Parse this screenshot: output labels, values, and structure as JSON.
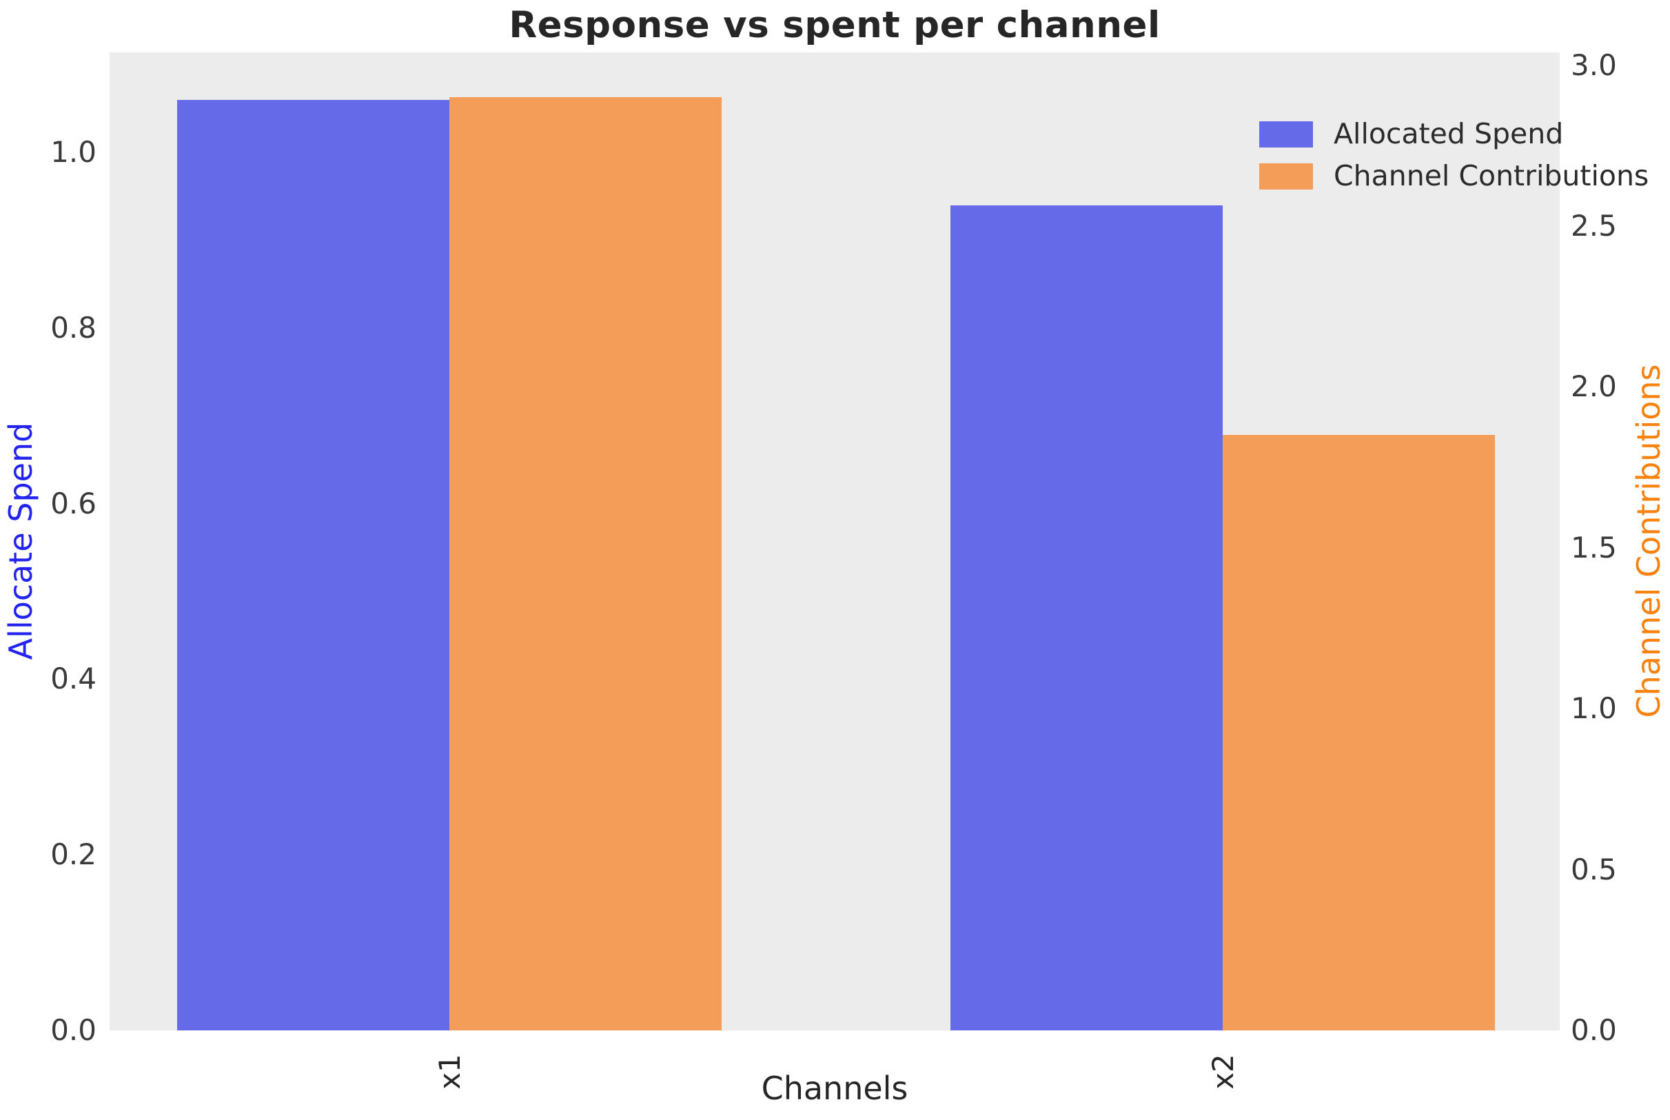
{
  "title": "Response vs spent per channel",
  "chart_data": {
    "type": "bar",
    "title": "Response vs spent per channel",
    "xlabel": "Channels",
    "ylabel_left": "Allocate Spend",
    "ylabel_right": "Channel Contributions",
    "categories": [
      "x1",
      "x2"
    ],
    "series": [
      {
        "name": "Allocated Spend",
        "axis": "left",
        "color": "#656ae8",
        "values": [
          1.06,
          0.94
        ]
      },
      {
        "name": "Channel Contributions",
        "axis": "right",
        "color": "#f49d59",
        "values": [
          2.9,
          1.85
        ]
      }
    ],
    "ylim_left": [
      0,
      1.114
    ],
    "ylim_right": [
      0,
      3.04
    ],
    "yticks_left": [
      "0.0",
      "0.2",
      "0.4",
      "0.6",
      "0.8",
      "1.0"
    ],
    "yticks_right": [
      "0.0",
      "0.5",
      "1.0",
      "1.5",
      "2.0",
      "2.5",
      "3.0"
    ],
    "grid": false,
    "legend_position": "upper right"
  },
  "colors": {
    "plot_background": "#ececec",
    "figure_background": "#ffffff",
    "bar_blue": "#656ae8",
    "bar_orange": "#f49d59",
    "ylabel_left_color": "#2323ef",
    "ylabel_right_color": "#f9810e",
    "tick_label_color": "#3a3a3a",
    "text_color": "#262626"
  }
}
